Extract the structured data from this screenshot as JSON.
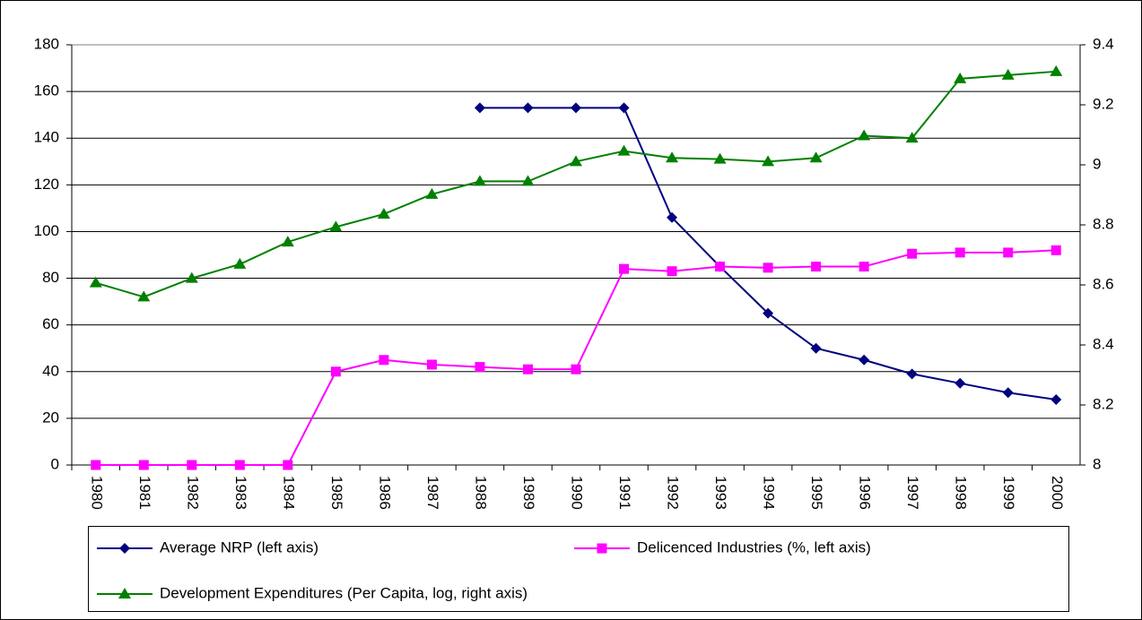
{
  "chart_data": {
    "type": "line",
    "categories": [
      "1980",
      "1981",
      "1982",
      "1983",
      "1984",
      "1985",
      "1986",
      "1987",
      "1988",
      "1989",
      "1990",
      "1991",
      "1992",
      "1993",
      "1994",
      "1995",
      "1996",
      "1997",
      "1998",
      "1999",
      "2000"
    ],
    "ylim": [
      0,
      180
    ],
    "yticks": [
      0,
      20,
      40,
      60,
      80,
      100,
      120,
      140,
      160,
      180
    ],
    "y2lim": [
      8,
      9.4
    ],
    "y2ticks": [
      8,
      8.2,
      8.4,
      8.6,
      8.8,
      9,
      9.2,
      9.4
    ],
    "grid": true,
    "series": [
      {
        "name": "Average NRP (left axis)",
        "color": "#000080",
        "marker": "diamond",
        "values": [
          null,
          null,
          null,
          null,
          null,
          null,
          null,
          null,
          153,
          153,
          153,
          153,
          106,
          85,
          65,
          50,
          45,
          39,
          35,
          31,
          28
        ]
      },
      {
        "name": "Delicenced Industries (%, left axis)",
        "color": "#ff00ff",
        "marker": "square",
        "values": [
          0,
          0,
          0,
          0,
          0,
          40,
          45,
          43,
          42,
          41,
          41,
          84,
          83,
          85,
          84.5,
          85,
          85,
          90.5,
          91,
          91,
          92
        ]
      },
      {
        "name": "Development Expenditures (Per Capita, log, right axis)",
        "color": "#008000",
        "marker": "triangle",
        "axis": "y2",
        "values": [
          8.607,
          8.56,
          8.622,
          8.669,
          8.743,
          8.793,
          8.836,
          8.902,
          8.945,
          8.945,
          9.011,
          9.046,
          9.023,
          9.019,
          9.011,
          9.023,
          9.097,
          9.089,
          9.287,
          9.299,
          9.311
        ]
      }
    ]
  }
}
